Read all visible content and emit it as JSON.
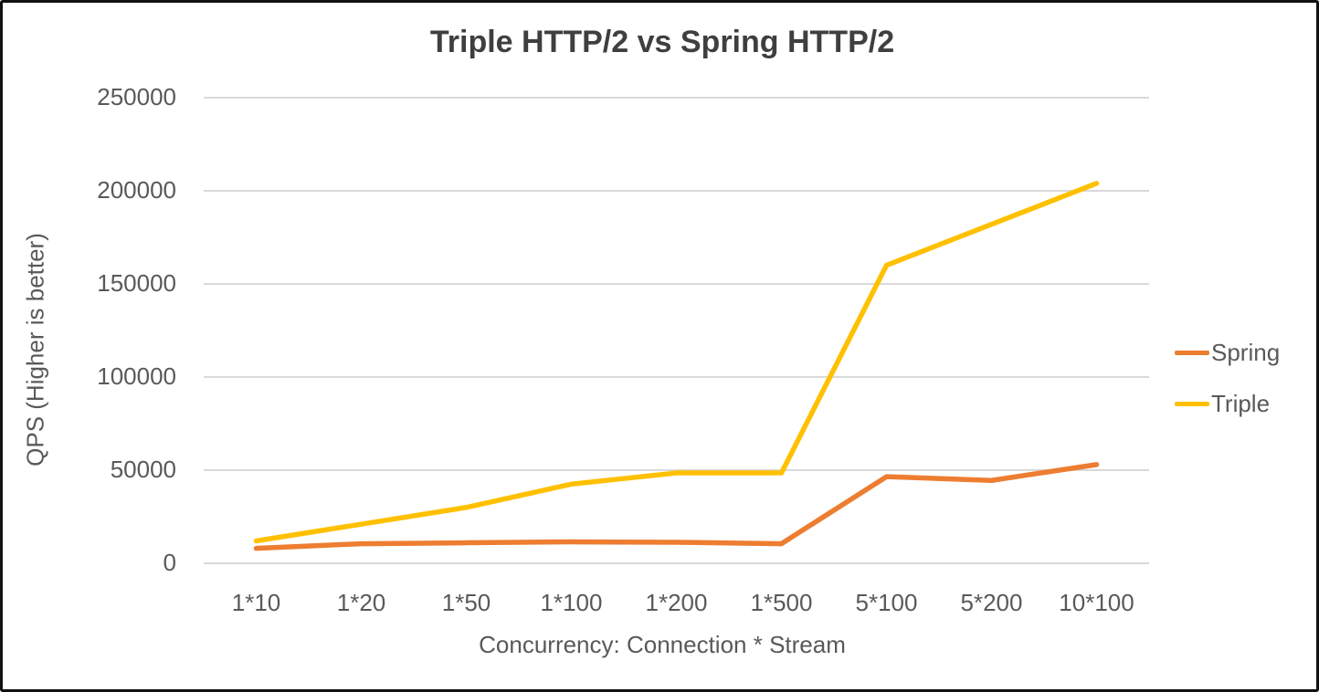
{
  "window": {
    "title": "Triple HTTP/2 vs Spring HTTP/2"
  },
  "colors": {
    "background": "#FFFFFF",
    "frame_border": "#111111",
    "gridline": "#D9D9D9",
    "axis_text": "#595959",
    "title_text": "#3F3F3F",
    "spring_series": "#ED7D31",
    "triple_series": "#FFC000"
  },
  "chart_data": {
    "type": "line",
    "title": "Triple HTTP/2 vs Spring HTTP/2",
    "xlabel": "Concurrency: Connection * Stream",
    "ylabel": "QPS (Higher is better)",
    "categories": [
      "1*10",
      "1*20",
      "1*50",
      "1*100",
      "1*200",
      "1*500",
      "5*100",
      "5*200",
      "10*100"
    ],
    "yticks": [
      0,
      50000,
      100000,
      150000,
      200000,
      250000
    ],
    "ylim": [
      0,
      250000
    ],
    "grid": true,
    "legend_position": "right",
    "series": [
      {
        "name": "Spring",
        "color": "#ED7D31",
        "values": [
          8000,
          10500,
          11000,
          11500,
          11300,
          10500,
          46500,
          44500,
          53000
        ]
      },
      {
        "name": "Triple",
        "color": "#FFC000",
        "values": [
          12000,
          21000,
          30000,
          42500,
          48500,
          48500,
          160000,
          182000,
          204000
        ]
      }
    ]
  }
}
